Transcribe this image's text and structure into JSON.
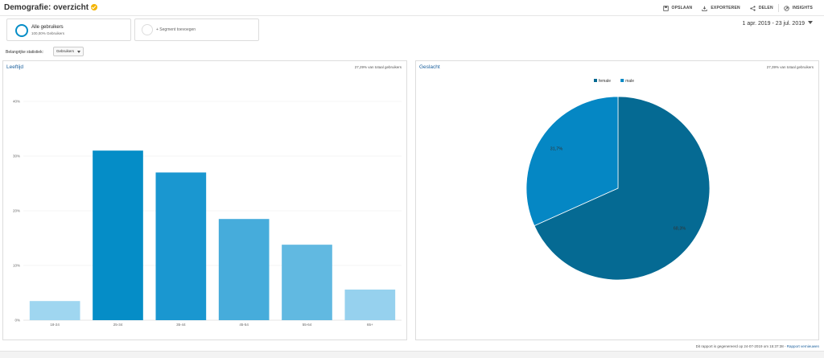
{
  "header": {
    "title": "Demografie: overzicht",
    "actions": [
      {
        "label": "OPSLAAN",
        "icon": "save-icon"
      },
      {
        "label": "EXPORTEREN",
        "icon": "export-icon"
      },
      {
        "label": "DELEN",
        "icon": "share-icon"
      },
      {
        "label": "INSIGHTS",
        "icon": "insights-icon"
      }
    ]
  },
  "segments": {
    "active": {
      "label": "Alle gebruikers",
      "sublabel": "100,00% Gebruikers"
    },
    "add_label": "+ Segment toevoegen"
  },
  "date_range": "1 apr. 2019 - 23 jul. 2019",
  "stats": {
    "label": "Belangrijke statistiek:",
    "selected": "Gebruikers"
  },
  "age_panel": {
    "title": "Leeftijd",
    "pct": "27,29% van totaal gebruikers"
  },
  "gender_panel": {
    "title": "Geslacht",
    "pct": "27,39% van totaal gebruikers"
  },
  "footer": {
    "text": "Dit rapport is gegenereerd op 24-07-2019 om 15:37:38 - ",
    "link": "Rapport vernieuwen"
  },
  "colors": {
    "accent": "#058dc7",
    "female": "#056a93",
    "male": "#0587c4"
  },
  "chart_data": [
    {
      "type": "bar",
      "title": "Leeftijd",
      "categories": [
        "18-24",
        "25-34",
        "35-44",
        "45-54",
        "55-64",
        "65+"
      ],
      "values": [
        3.5,
        31.0,
        27.0,
        18.5,
        13.8,
        5.6
      ],
      "yticks": [
        "0%",
        "10%",
        "20%",
        "30%",
        "40%"
      ],
      "ylim": [
        0,
        40
      ],
      "colors": [
        "#9fd6f0",
        "#058dc7",
        "#1a97d0",
        "#46acdb",
        "#61b9e1",
        "#96d1ee"
      ],
      "grid": true
    },
    {
      "type": "pie",
      "title": "Geslacht",
      "labels": [
        "female",
        "male"
      ],
      "values": [
        68.3,
        31.7
      ],
      "value_labels": [
        "68,3%",
        "31,7%"
      ],
      "colors": [
        "#056a93",
        "#0587c4"
      ],
      "legend": "top-center"
    }
  ]
}
